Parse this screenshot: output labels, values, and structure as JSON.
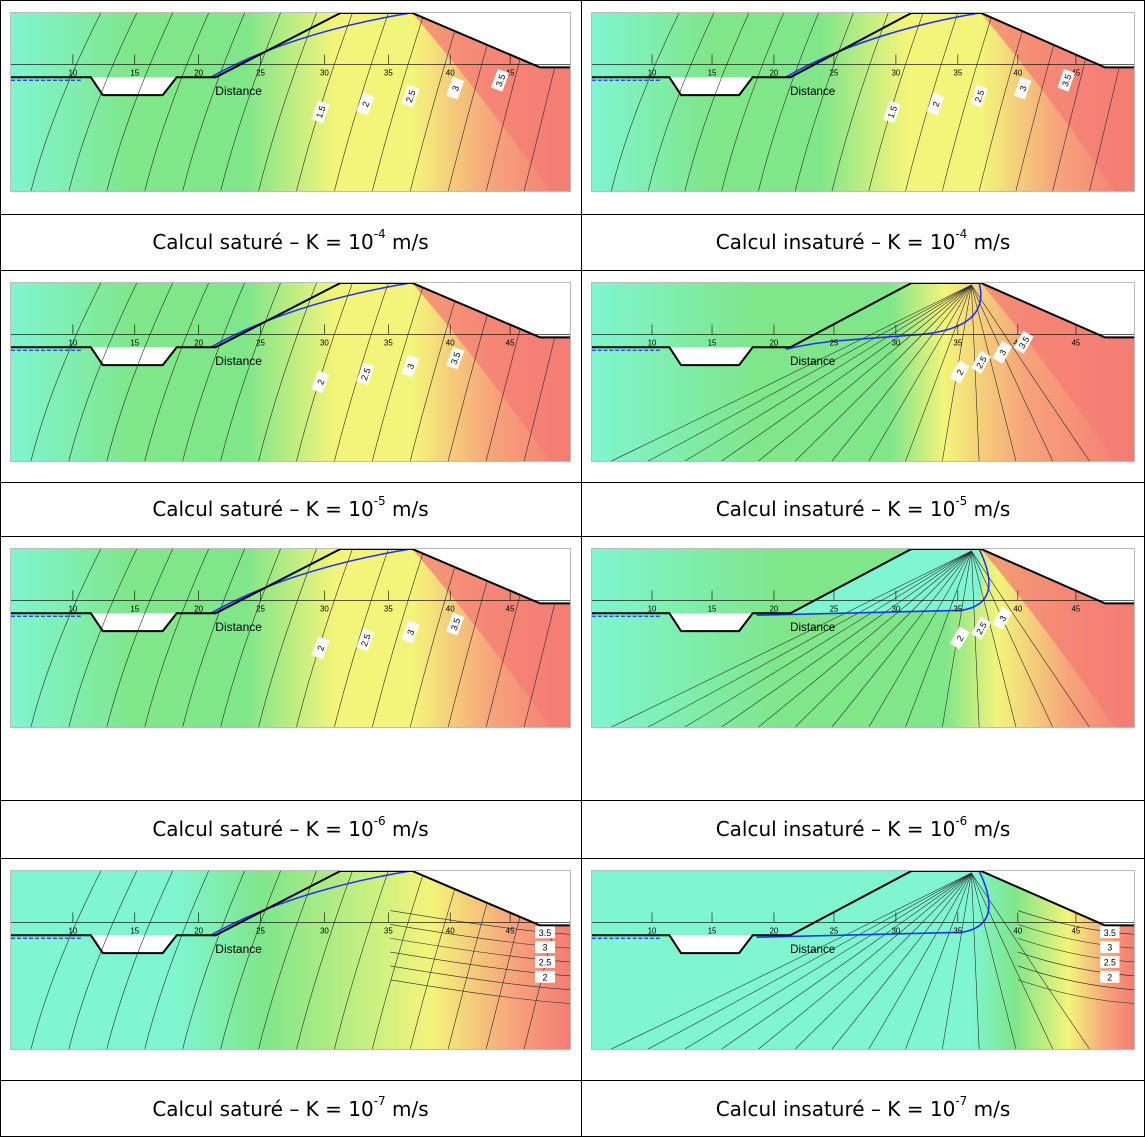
{
  "axis_ticks": [
    "10",
    "15",
    "20",
    "25",
    "30",
    "35",
    "40",
    "45"
  ],
  "distance_label": "Distance",
  "colors": {
    "cyan": "#7ff5d0",
    "green": "#7fe68a",
    "yellow": "#f3f47a",
    "orange": "#f6a37b",
    "red": "#f47c74",
    "phreatic": "#2030ff"
  },
  "panels": [
    {
      "caption_pre": "Calcul saturé – K = 10",
      "caption_exp": "-4",
      "caption_post": " m/s",
      "mode": "saturated",
      "labels": [
        "1.5",
        "2",
        "2.5",
        "3",
        "3.5"
      ]
    },
    {
      "caption_pre": "Calcul insaturé – K = 10",
      "caption_exp": "-4",
      "caption_post": " m/s",
      "mode": "unsat1",
      "labels": [
        "1.5",
        "2",
        "2.5",
        "3",
        "3.5"
      ]
    },
    {
      "caption_pre": "Calcul saturé – K = 10",
      "caption_exp": "-5",
      "caption_post": " m/s",
      "mode": "saturated",
      "labels": [
        "2",
        "2.5",
        "3",
        "3.5"
      ]
    },
    {
      "caption_pre": "Calcul insaturé – K = 10",
      "caption_exp": "-5",
      "caption_post": " m/s",
      "mode": "unsat2",
      "labels": [
        "2",
        "2.5",
        "3",
        "3.5"
      ]
    },
    {
      "caption_pre": "Calcul saturé – K = 10",
      "caption_exp": "-6",
      "caption_post": " m/s",
      "mode": "saturated",
      "labels": [
        "2",
        "2.5",
        "3",
        "3.5"
      ]
    },
    {
      "caption_pre": "Calcul insaturé – K = 10",
      "caption_exp": "-6",
      "caption_post": " m/s",
      "mode": "unsat3",
      "labels": [
        "2",
        "2.5",
        "3"
      ]
    },
    {
      "caption_pre": "Calcul saturé – K = 10",
      "caption_exp": "-7",
      "caption_post": " m/s",
      "mode": "sat7",
      "labels": [
        "3.5",
        "3",
        "2.5",
        "2"
      ]
    },
    {
      "caption_pre": "Calcul insaturé – K = 10",
      "caption_exp": "-7",
      "caption_post": " m/s",
      "mode": "unsat4",
      "labels": [
        "3.5",
        "3",
        "2.5",
        "2"
      ]
    }
  ]
}
